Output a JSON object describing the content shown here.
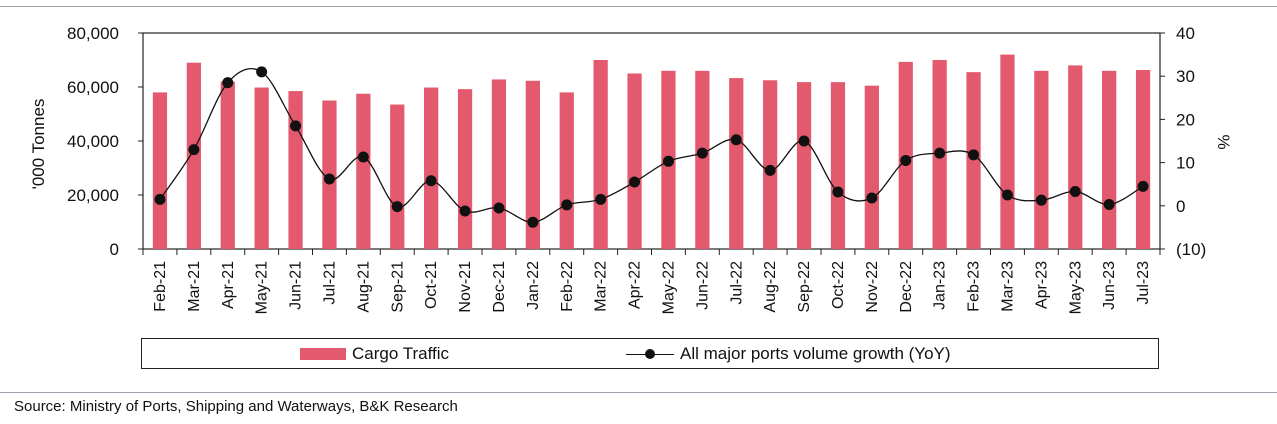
{
  "chart_data": {
    "type": "bar",
    "categories": [
      "Feb-21",
      "Mar-21",
      "Apr-21",
      "May-21",
      "Jun-21",
      "Jul-21",
      "Aug-21",
      "Sep-21",
      "Oct-21",
      "Nov-21",
      "Dec-21",
      "Jan-22",
      "Feb-22",
      "Mar-22",
      "Apr-22",
      "May-22",
      "Jun-22",
      "Jul-22",
      "Aug-22",
      "Sep-22",
      "Oct-22",
      "Nov-22",
      "Dec-22",
      "Jan-23",
      "Feb-23",
      "Mar-23",
      "Apr-23",
      "May-23",
      "Jun-23",
      "Jul-23"
    ],
    "series": [
      {
        "name": "Cargo Traffic",
        "axis": "left",
        "kind": "bar",
        "color": "#e35a6e",
        "values": [
          58000,
          69000,
          62000,
          59800,
          58500,
          55000,
          57500,
          53500,
          59800,
          59200,
          62800,
          62300,
          58000,
          70000,
          65000,
          66000,
          66000,
          63300,
          62500,
          61800,
          61800,
          60500,
          69300,
          70000,
          65500,
          72000,
          66000,
          68000,
          66000,
          66300
        ]
      },
      {
        "name": "All major ports volume growth (YoY)",
        "axis": "right",
        "kind": "line",
        "color": "#111111",
        "values": [
          1.5,
          13,
          28.5,
          31,
          18.5,
          6.2,
          11.3,
          -0.2,
          5.8,
          -1.2,
          -0.5,
          -3.8,
          0.2,
          1.5,
          5.5,
          10.3,
          12.2,
          15.3,
          8.2,
          15,
          3.2,
          1.8,
          10.5,
          12.2,
          11.8,
          2.5,
          1.3,
          3.3,
          0.3,
          4.5
        ]
      }
    ],
    "ylabel": "'000 Tonnes",
    "ylim": [
      0,
      80000
    ],
    "yticks": [
      0,
      20000,
      40000,
      60000,
      80000
    ],
    "ytick_labels": [
      "0",
      "20,000",
      "40,000",
      "60,000",
      "80,000"
    ],
    "y2label": "%",
    "y2lim": [
      -10,
      40
    ],
    "y2ticks": [
      -10,
      0,
      10,
      20,
      30,
      40
    ],
    "y2tick_labels": [
      "(10)",
      "0",
      "10",
      "20",
      "30",
      "40"
    ],
    "legend_position": "bottom"
  },
  "legend": {
    "bar_label": "Cargo Traffic",
    "line_label": "All major ports volume growth (YoY)"
  },
  "source": "Source: Ministry of Ports, Shipping and Waterways, B&K Research"
}
